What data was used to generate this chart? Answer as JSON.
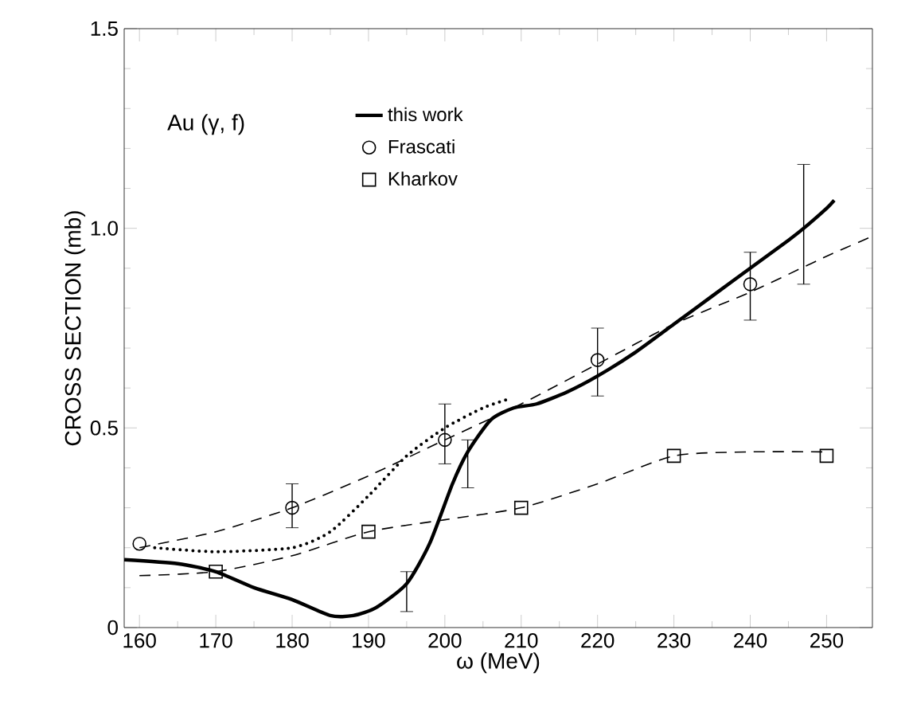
{
  "chart_data": {
    "type": "line",
    "xlabel": "ω (MeV)",
    "ylabel": "CROSS SECTION (mb)",
    "xlim": [
      158,
      256
    ],
    "ylim": [
      0,
      1.5
    ],
    "xticks": [
      160,
      170,
      180,
      190,
      200,
      210,
      220,
      230,
      240,
      250
    ],
    "yticks": [
      {
        "value": 0,
        "label": "0"
      },
      {
        "value": 0.5,
        "label": "0.5"
      },
      {
        "value": 1.0,
        "label": "1.0"
      },
      {
        "value": 1.5,
        "label": "1.5"
      }
    ],
    "legend": "top left",
    "annotations": [
      "Au (γ, f)"
    ],
    "series": [
      {
        "name": "this work",
        "line_style": "solid",
        "color": "#000000",
        "x": [
          158,
          165,
          170,
          175,
          180,
          185,
          188,
          191,
          195,
          198,
          201,
          203,
          206,
          209,
          212,
          216,
          220,
          225,
          230,
          235,
          240,
          245,
          247,
          250,
          251
        ],
        "values": [
          0.17,
          0.16,
          0.14,
          0.1,
          0.07,
          0.03,
          0.03,
          0.05,
          0.11,
          0.21,
          0.36,
          0.44,
          0.52,
          0.55,
          0.56,
          0.59,
          0.63,
          0.69,
          0.76,
          0.83,
          0.9,
          0.97,
          1.0,
          1.05,
          1.07
        ],
        "errors": [
          null,
          null,
          null,
          null,
          null,
          null,
          null,
          null,
          [
            0.04,
            0.14
          ],
          null,
          null,
          [
            0.35,
            0.47
          ],
          null,
          null,
          null,
          null,
          null,
          null,
          null,
          null,
          null,
          null,
          [
            0.86,
            1.16
          ],
          null,
          null
        ]
      },
      {
        "name": "Frascati",
        "type": "scatter",
        "marker": "circle",
        "color": "#000000",
        "x": [
          160,
          180,
          200,
          220,
          240
        ],
        "values": [
          0.21,
          0.3,
          0.47,
          0.67,
          0.86
        ],
        "errors": [
          null,
          [
            0.25,
            0.36
          ],
          [
            0.41,
            0.56
          ],
          [
            0.58,
            0.75
          ],
          [
            0.77,
            0.94
          ]
        ]
      },
      {
        "name": "Kharkov",
        "type": "scatter",
        "marker": "square",
        "color": "#000000",
        "x": [
          170,
          190,
          210,
          230,
          250
        ],
        "values": [
          0.14,
          0.24,
          0.3,
          0.43,
          0.43
        ]
      },
      {
        "line_style": "dashed",
        "color": "#000000",
        "x": [
          160,
          170,
          180,
          190,
          200,
          210,
          220,
          230,
          240,
          250,
          256
        ],
        "values": [
          0.2,
          0.24,
          0.3,
          0.38,
          0.47,
          0.56,
          0.66,
          0.76,
          0.84,
          0.93,
          0.98
        ]
      },
      {
        "line_style": "dashed",
        "color": "#000000",
        "x": [
          160,
          170,
          180,
          190,
          200,
          210,
          220,
          230,
          240,
          250
        ],
        "values": [
          0.13,
          0.14,
          0.18,
          0.24,
          0.27,
          0.3,
          0.36,
          0.43,
          0.44,
          0.44
        ]
      },
      {
        "line_style": "dotted",
        "color": "#000000",
        "x": [
          162,
          170,
          180,
          185,
          190,
          195,
          200,
          205,
          208
        ],
        "values": [
          0.2,
          0.19,
          0.2,
          0.24,
          0.33,
          0.43,
          0.5,
          0.55,
          0.57
        ]
      }
    ]
  }
}
